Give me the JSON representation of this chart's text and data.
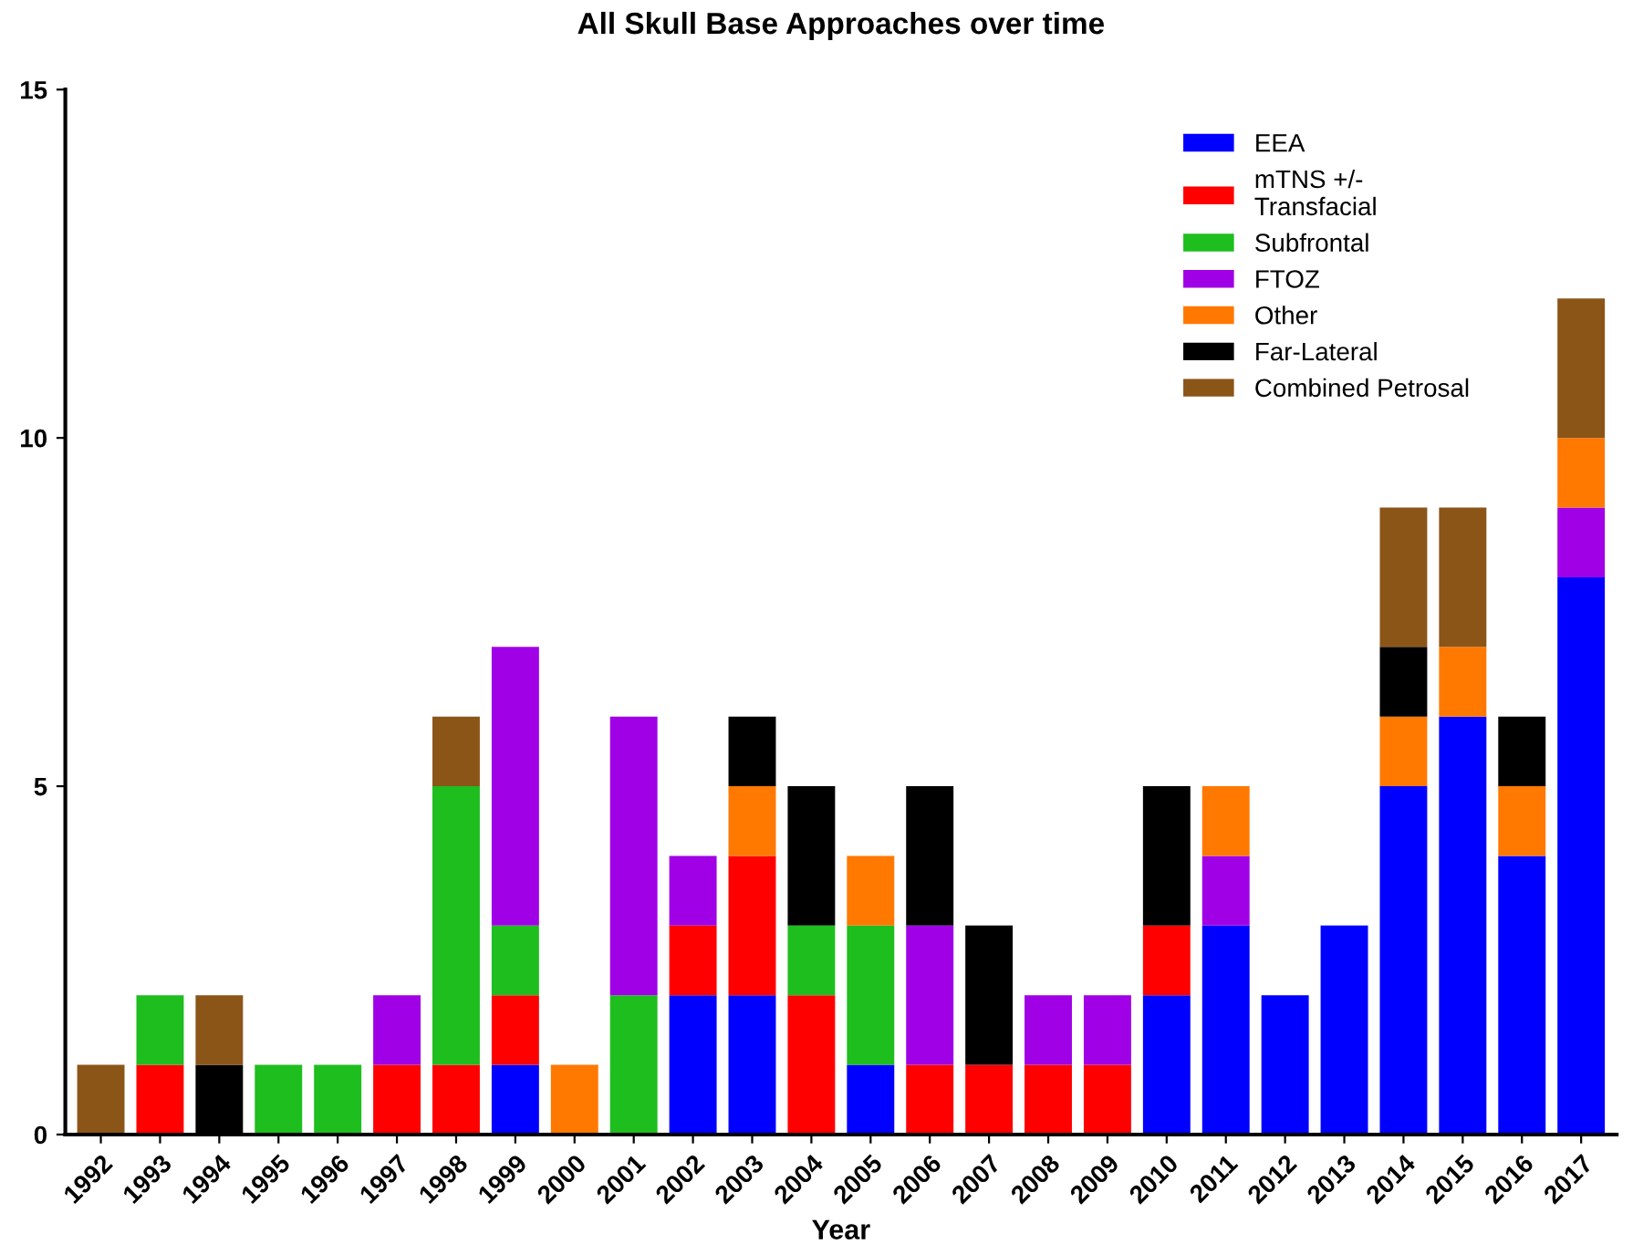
{
  "chart_data": {
    "type": "bar",
    "title": "All Skull Base Approaches over time",
    "xlabel": "Year",
    "stacked": true,
    "legend": "top right",
    "grid": false,
    "categories": [
      "1992",
      "1993",
      "1994",
      "1995",
      "1996",
      "1997",
      "1998",
      "1999",
      "2000",
      "2001",
      "2002",
      "2003",
      "2004",
      "2005",
      "2006",
      "2007",
      "2008",
      "2009",
      "2010",
      "2011",
      "2012",
      "2013",
      "2014",
      "2015",
      "2016",
      "2017"
    ],
    "ylim": [
      0,
      15
    ],
    "yticks": [
      0,
      5,
      10,
      15
    ],
    "series": [
      {
        "name": "EEA",
        "color": "#0000ff",
        "values": [
          0,
          0,
          0,
          0,
          0,
          0,
          0,
          1,
          0,
          0,
          2,
          2,
          0,
          1,
          0,
          0,
          0,
          0,
          2,
          3,
          2,
          3,
          5,
          6,
          4,
          8
        ]
      },
      {
        "name": "mTNS +/-\nTransfacial",
        "color": "#ff0000",
        "values": [
          0,
          1,
          0,
          0,
          0,
          1,
          1,
          1,
          0,
          0,
          1,
          2,
          2,
          0,
          1,
          1,
          1,
          1,
          1,
          0,
          0,
          0,
          0,
          0,
          0,
          0
        ]
      },
      {
        "name": "Subfrontal",
        "color": "#1ebe1e",
        "values": [
          0,
          1,
          0,
          1,
          1,
          0,
          4,
          1,
          0,
          2,
          0,
          0,
          1,
          2,
          0,
          0,
          0,
          0,
          0,
          0,
          0,
          0,
          0,
          0,
          0,
          0
        ]
      },
      {
        "name": "FTOZ",
        "color": "#a000e6",
        "values": [
          0,
          0,
          0,
          0,
          0,
          1,
          0,
          4,
          0,
          4,
          1,
          0,
          0,
          0,
          2,
          0,
          1,
          1,
          0,
          1,
          0,
          0,
          0,
          0,
          0,
          1
        ]
      },
      {
        "name": "Other",
        "color": "#ff7800",
        "values": [
          0,
          0,
          0,
          0,
          0,
          0,
          0,
          0,
          1,
          0,
          0,
          1,
          0,
          1,
          0,
          0,
          0,
          0,
          0,
          1,
          0,
          0,
          1,
          1,
          1,
          1
        ]
      },
      {
        "name": "Far-Lateral",
        "color": "#000000",
        "values": [
          0,
          0,
          1,
          0,
          0,
          0,
          0,
          0,
          0,
          0,
          0,
          1,
          2,
          0,
          2,
          2,
          0,
          0,
          2,
          0,
          0,
          0,
          1,
          0,
          1,
          0
        ]
      },
      {
        "name": "Combined Petrosal",
        "color": "#8b5518",
        "values": [
          1,
          0,
          1,
          0,
          0,
          0,
          1,
          0,
          0,
          0,
          0,
          0,
          0,
          0,
          0,
          0,
          0,
          0,
          0,
          0,
          0,
          0,
          2,
          2,
          0,
          2
        ]
      }
    ]
  }
}
